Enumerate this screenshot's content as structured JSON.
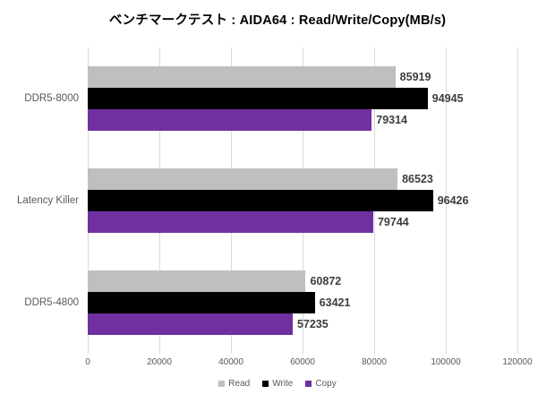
{
  "chart_data": {
    "type": "bar",
    "orientation": "horizontal",
    "title": "ベンチマークテスト : AIDA64 : Read/Write/Copy(MB/s)",
    "categories": [
      "DDR5-8000",
      "Latency Killer",
      "DDR5-4800"
    ],
    "series": [
      {
        "name": "Read",
        "color": "#BFBFBF",
        "values": [
          85919,
          86523,
          60872
        ]
      },
      {
        "name": "Write",
        "color": "#000000",
        "values": [
          94945,
          96426,
          63421
        ]
      },
      {
        "name": "Copy",
        "color": "#7030A0",
        "values": [
          79314,
          79744,
          57235
        ]
      }
    ],
    "xlim": [
      0,
      120000
    ],
    "x_ticks": [
      "0",
      "20000",
      "40000",
      "60000",
      "80000",
      "100000",
      "120000"
    ],
    "grid": true,
    "legend_position": "bottom"
  },
  "colors": {
    "background": "#FFFFFF",
    "gridline": "#D9D9D9",
    "title_text": "#000000",
    "data_label_text": "#3D3D3D",
    "axis_text": "#595959"
  }
}
